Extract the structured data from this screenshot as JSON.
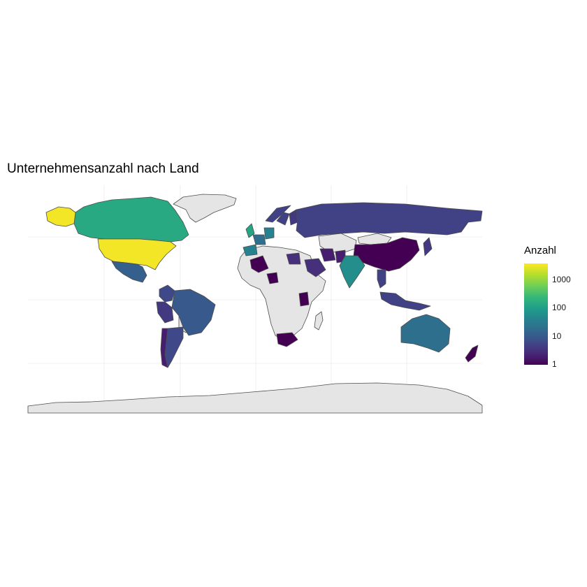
{
  "title": "Unternehmensanzahl nach Land",
  "legend": {
    "title": "Anzahl",
    "scale": "log10",
    "range": [
      1,
      4000
    ],
    "palette": [
      "#440154",
      "#482878",
      "#3e4a89",
      "#31688e",
      "#26828e",
      "#1f9e89",
      "#35b779",
      "#6ece58",
      "#b5de2b",
      "#fde725"
    ],
    "ticks": [
      "1",
      "10",
      "100",
      "1000"
    ]
  },
  "chart_data": {
    "type": "choropleth",
    "value_name": "Anzahl",
    "missing_color": "#e5e5e5",
    "countries": [
      {
        "name": "United States",
        "value": 3500
      },
      {
        "name": "Canada",
        "value": 150
      },
      {
        "name": "Brazil",
        "value": 10
      },
      {
        "name": "Argentina",
        "value": 6
      },
      {
        "name": "Chile",
        "value": 2
      },
      {
        "name": "Mexico",
        "value": 12
      },
      {
        "name": "Colombia",
        "value": 6
      },
      {
        "name": "Peru",
        "value": 4
      },
      {
        "name": "United Kingdom",
        "value": 130
      },
      {
        "name": "Germany",
        "value": 40
      },
      {
        "name": "France",
        "value": 20
      },
      {
        "name": "Spain",
        "value": 40
      },
      {
        "name": "Russia",
        "value": 5
      },
      {
        "name": "Norway",
        "value": 5
      },
      {
        "name": "Sweden",
        "value": 5
      },
      {
        "name": "Finland",
        "value": 4
      },
      {
        "name": "China",
        "value": 1
      },
      {
        "name": "India",
        "value": 60
      },
      {
        "name": "Egypt",
        "value": 3
      },
      {
        "name": "Saudi Arabia",
        "value": 3
      },
      {
        "name": "Iran",
        "value": 2
      },
      {
        "name": "Pakistan",
        "value": 2
      },
      {
        "name": "Kenya",
        "value": 1
      },
      {
        "name": "South Africa",
        "value": 1
      },
      {
        "name": "Australia",
        "value": 20
      },
      {
        "name": "New Zealand",
        "value": 1
      },
      {
        "name": "Japan",
        "value": 4
      },
      {
        "name": "Indonesia",
        "value": 5
      },
      {
        "name": "Thailand",
        "value": 5
      },
      {
        "name": "Nigeria",
        "value": 1
      },
      {
        "name": "Mali",
        "value": 1
      }
    ]
  }
}
